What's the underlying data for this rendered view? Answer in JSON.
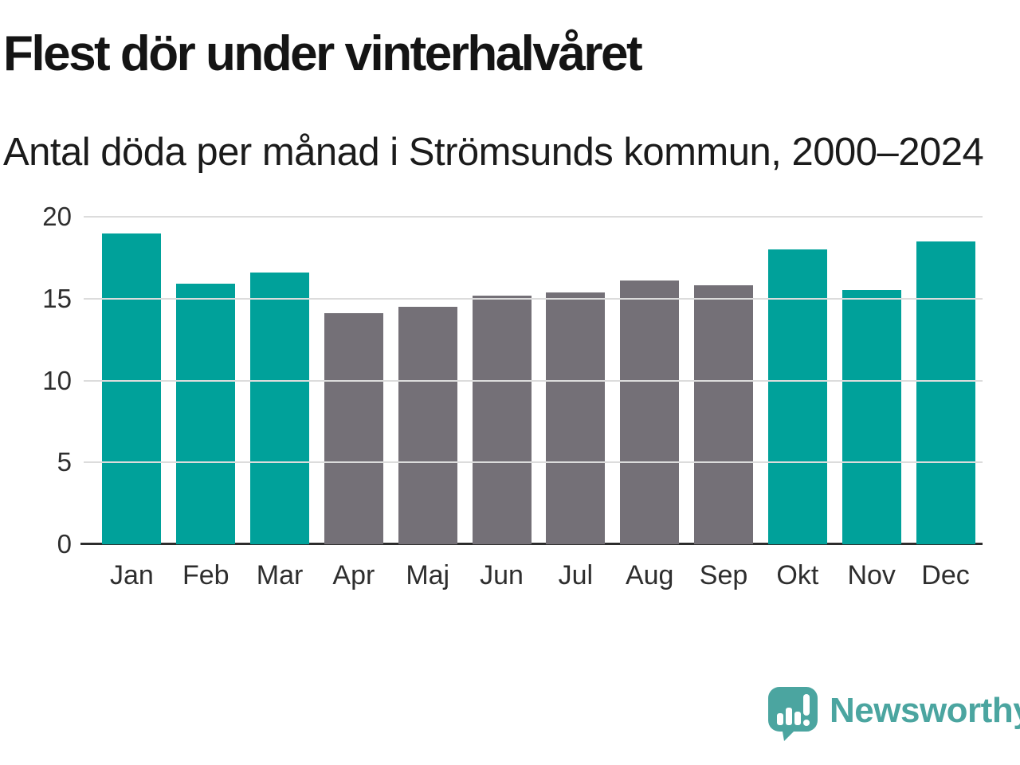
{
  "header": {
    "title": "Flest dör under vinterhalvåret",
    "subtitle": "Antal döda per månad i Strömsunds kommun, 2000–2024"
  },
  "chart_data": {
    "type": "bar",
    "categories": [
      "Jan",
      "Feb",
      "Mar",
      "Apr",
      "Maj",
      "Jun",
      "Jul",
      "Aug",
      "Sep",
      "Okt",
      "Nov",
      "Dec"
    ],
    "values": [
      19.0,
      15.9,
      16.6,
      14.1,
      14.5,
      15.2,
      15.4,
      16.1,
      15.8,
      18.0,
      15.5,
      18.5
    ],
    "bar_groups": [
      "winter",
      "winter",
      "winter",
      "summer",
      "summer",
      "summer",
      "summer",
      "summer",
      "summer",
      "winter",
      "winter",
      "winter"
    ],
    "colors": {
      "winter": "#00a19a",
      "summer": "#747077"
    },
    "title": "Flest dör under vinterhalvåret",
    "subtitle": "Antal döda per månad i Strömsunds kommun, 2000–2024",
    "xlabel": "",
    "ylabel": "",
    "ylim": [
      0,
      20
    ],
    "yticks": [
      0,
      5,
      10,
      15,
      20
    ],
    "grid": true,
    "legend": false,
    "gridline_color": "#dcdcdc",
    "axis_line_color": "#2d2d2d",
    "tick_label_color": "#2e2e2e"
  },
  "footer": {
    "brand": "Newsworthy",
    "logo_color": "#4ba5a0",
    "logo_glyph": "bar-chart-exclamation-speech-bubble"
  }
}
